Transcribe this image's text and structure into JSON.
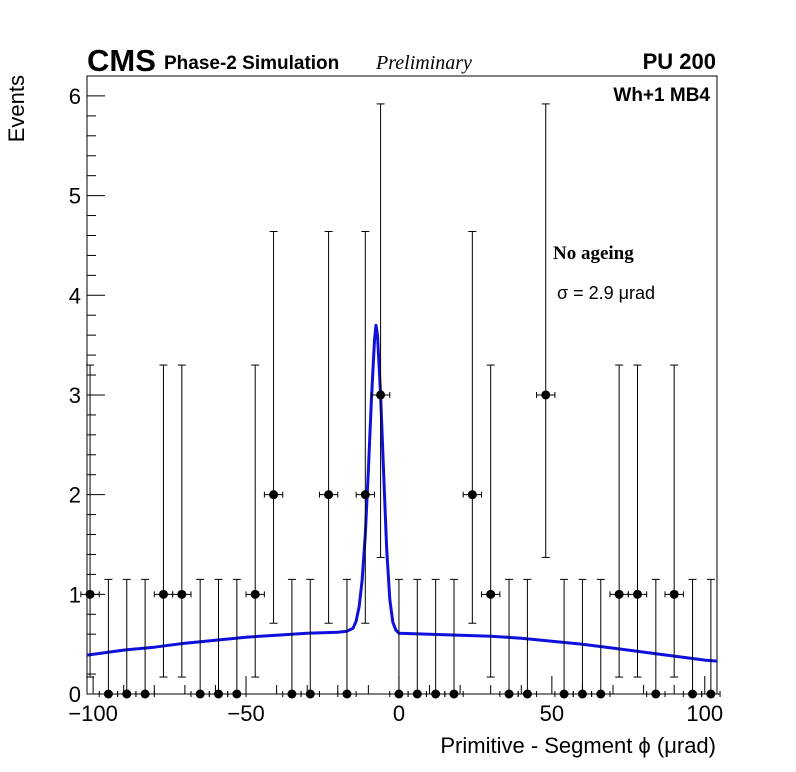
{
  "header": {
    "experiment": "CMS",
    "subtitle": "Phase-2 Simulation",
    "status": "Preliminary",
    "pileup": "PU 200",
    "chamber": "Wh+1 MB4"
  },
  "legend": {
    "condition": "No ageing",
    "sigma_text": "σ = 2.9  μrad"
  },
  "chart_data": {
    "type": "scatter",
    "xlabel": "Primitive - Segment ϕ (μrad)",
    "ylabel": "Events",
    "xlim": [
      -102,
      104
    ],
    "ylim": [
      0,
      6.2
    ],
    "x_ticks": [
      -100,
      -50,
      0,
      50,
      100
    ],
    "x_tick_labels": [
      "−100",
      "−50",
      "0",
      "50",
      "100"
    ],
    "y_ticks": [
      0,
      1,
      2,
      3,
      4,
      5,
      6
    ],
    "y_tick_labels": [
      "0",
      "1",
      "2",
      "3",
      "4",
      "5",
      "6"
    ],
    "grid": false,
    "bin_half_width": 3,
    "series": [
      {
        "kind": "points_with_errors",
        "color": "#000000",
        "points": [
          {
            "x": -101,
            "y": 1,
            "err_low": 0.83,
            "err_high": 2.3
          },
          {
            "x": -95,
            "y": 0,
            "err_low": 0,
            "err_high": 1.15
          },
          {
            "x": -89,
            "y": 0,
            "err_low": 0,
            "err_high": 1.15
          },
          {
            "x": -83,
            "y": 0,
            "err_low": 0,
            "err_high": 1.15
          },
          {
            "x": -77,
            "y": 1,
            "err_low": 0.83,
            "err_high": 2.3
          },
          {
            "x": -71,
            "y": 1,
            "err_low": 0.83,
            "err_high": 2.3
          },
          {
            "x": -65,
            "y": 0,
            "err_low": 0,
            "err_high": 1.15
          },
          {
            "x": -59,
            "y": 0,
            "err_low": 0,
            "err_high": 1.15
          },
          {
            "x": -53,
            "y": 0,
            "err_low": 0,
            "err_high": 1.15
          },
          {
            "x": -47,
            "y": 1,
            "err_low": 0.83,
            "err_high": 2.3
          },
          {
            "x": -41,
            "y": 2,
            "err_low": 1.29,
            "err_high": 2.64
          },
          {
            "x": -35,
            "y": 0,
            "err_low": 0,
            "err_high": 1.15
          },
          {
            "x": -29,
            "y": 0,
            "err_low": 0,
            "err_high": 1.15
          },
          {
            "x": -23,
            "y": 2,
            "err_low": 1.29,
            "err_high": 2.64
          },
          {
            "x": -17,
            "y": 0,
            "err_low": 0,
            "err_high": 1.15
          },
          {
            "x": -11,
            "y": 2,
            "err_low": 1.29,
            "err_high": 2.64
          },
          {
            "x": -6,
            "y": 3,
            "err_low": 1.63,
            "err_high": 2.92
          },
          {
            "x": 0,
            "y": 0,
            "err_low": 0,
            "err_high": 1.15
          },
          {
            "x": 6,
            "y": 0,
            "err_low": 0,
            "err_high": 1.15
          },
          {
            "x": 12,
            "y": 0,
            "err_low": 0,
            "err_high": 1.15
          },
          {
            "x": 18,
            "y": 0,
            "err_low": 0,
            "err_high": 1.15
          },
          {
            "x": 24,
            "y": 2,
            "err_low": 1.29,
            "err_high": 2.64
          },
          {
            "x": 30,
            "y": 1,
            "err_low": 0.83,
            "err_high": 2.3
          },
          {
            "x": 36,
            "y": 0,
            "err_low": 0,
            "err_high": 1.15
          },
          {
            "x": 42,
            "y": 0,
            "err_low": 0,
            "err_high": 1.15
          },
          {
            "x": 48,
            "y": 3,
            "err_low": 1.63,
            "err_high": 2.92
          },
          {
            "x": 54,
            "y": 0,
            "err_low": 0,
            "err_high": 1.15
          },
          {
            "x": 60,
            "y": 0,
            "err_low": 0,
            "err_high": 1.15
          },
          {
            "x": 66,
            "y": 0,
            "err_low": 0,
            "err_high": 1.15
          },
          {
            "x": 72,
            "y": 1,
            "err_low": 0.83,
            "err_high": 2.3
          },
          {
            "x": 78,
            "y": 1,
            "err_low": 0.83,
            "err_high": 2.3
          },
          {
            "x": 84,
            "y": 0,
            "err_low": 0,
            "err_high": 1.15
          },
          {
            "x": 90,
            "y": 1,
            "err_low": 0.83,
            "err_high": 2.3
          },
          {
            "x": 96,
            "y": 0,
            "err_low": 0,
            "err_high": 1.15
          },
          {
            "x": 102,
            "y": 0,
            "err_low": 0,
            "err_high": 1.15
          }
        ]
      },
      {
        "kind": "fit_curve",
        "color": "#1010dd",
        "x": [
          -102,
          -90,
          -80,
          -70,
          -60,
          -50,
          -40,
          -30,
          -20,
          -17,
          -15,
          -14,
          -13,
          -12,
          -11,
          -10,
          -9,
          -8,
          -7.5,
          -7,
          -6,
          -5,
          -4,
          -3,
          -2,
          -1,
          0,
          10,
          20,
          30,
          40,
          50,
          60,
          70,
          80,
          90,
          100,
          104
        ],
        "y": [
          0.39,
          0.44,
          0.47,
          0.51,
          0.54,
          0.57,
          0.59,
          0.61,
          0.62,
          0.63,
          0.66,
          0.73,
          0.88,
          1.15,
          1.6,
          2.25,
          2.95,
          3.55,
          3.7,
          3.6,
          3.0,
          2.2,
          1.45,
          0.95,
          0.72,
          0.64,
          0.61,
          0.6,
          0.59,
          0.58,
          0.56,
          0.53,
          0.5,
          0.46,
          0.42,
          0.38,
          0.34,
          0.33
        ]
      }
    ]
  }
}
